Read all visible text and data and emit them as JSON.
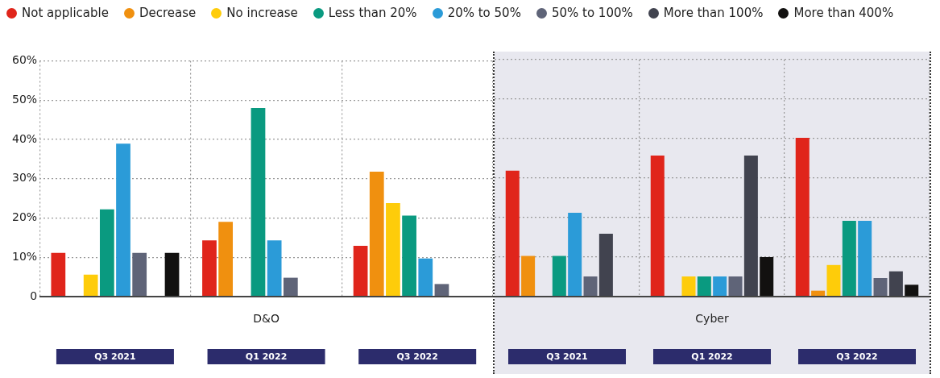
{
  "chart_data": [
    {
      "type": "bar",
      "xlabel": "D&O",
      "categories": [
        "Q3 2021",
        "Q1 2022",
        "Q3 2022"
      ],
      "ylim": [
        0,
        60
      ],
      "yticks": [
        0,
        {
          "value": 10,
          "label": "10%"
        },
        {
          "value": 20,
          "label": "20%"
        },
        {
          "value": 30,
          "label": "30%"
        },
        {
          "value": 40,
          "label": "40%"
        },
        {
          "value": 50,
          "label": "50%"
        },
        {
          "value": 60,
          "label": "60%"
        }
      ],
      "grid": true,
      "legend": "top",
      "series": [
        {
          "name": "Not applicable",
          "color": "#e0251b",
          "values": [
            11.1,
            14.3,
            12.9
          ]
        },
        {
          "name": "Decrease",
          "color": "#f0900f",
          "values": [
            null,
            19,
            31.8
          ]
        },
        {
          "name": "No increase",
          "color": "#fecc0a",
          "values": [
            5.6,
            null,
            23.8
          ]
        },
        {
          "name": "Less than 20%",
          "color": "#0a9a80",
          "values": [
            22.2,
            48,
            20.6
          ]
        },
        {
          "name": "20% to 50%",
          "color": "#2b9bd8",
          "values": [
            38.9,
            14.3,
            9.7
          ]
        },
        {
          "name": "50% to 100%",
          "color": "#5f6478",
          "values": [
            11.1,
            4.8,
            3.2
          ]
        },
        {
          "name": "More than 100%",
          "color": "#41434f",
          "values": [
            null,
            null,
            null
          ]
        },
        {
          "name": "More than 400%",
          "color": "#121110",
          "values": [
            11.1,
            null,
            null
          ]
        }
      ]
    },
    {
      "type": "bar",
      "xlabel": "Cyber",
      "categories": [
        "Q3 2021",
        "Q1 2022",
        "Q3 2022"
      ],
      "ylim": [
        0,
        60
      ],
      "yticks": [
        0,
        10,
        20,
        30,
        40,
        50,
        60
      ],
      "grid": true,
      "tick_labels": "x",
      "series": [
        {
          "color": "#e0251b",
          "values": [
            31.9,
            35.7,
            40.2
          ]
        },
        {
          "color": "#f0900f",
          "values": [
            10.3,
            null,
            1.5
          ]
        },
        {
          "color": "#fecc0a",
          "values": [
            null,
            5.1,
            8
          ]
        },
        {
          "color": "#0a9a80",
          "values": [
            10.3,
            5.1,
            19.2
          ]
        },
        {
          "color": "#2b9bd8",
          "values": [
            21.2,
            5.1,
            19.2
          ]
        },
        {
          "color": "#5f6478",
          "values": [
            5.1,
            5.1,
            4.7
          ]
        },
        {
          "color": "#41434f",
          "values": [
            15.9,
            35.7,
            6.4
          ]
        },
        {
          "color": "#121110",
          "values": [
            null,
            10,
            3
          ]
        }
      ]
    }
  ]
}
